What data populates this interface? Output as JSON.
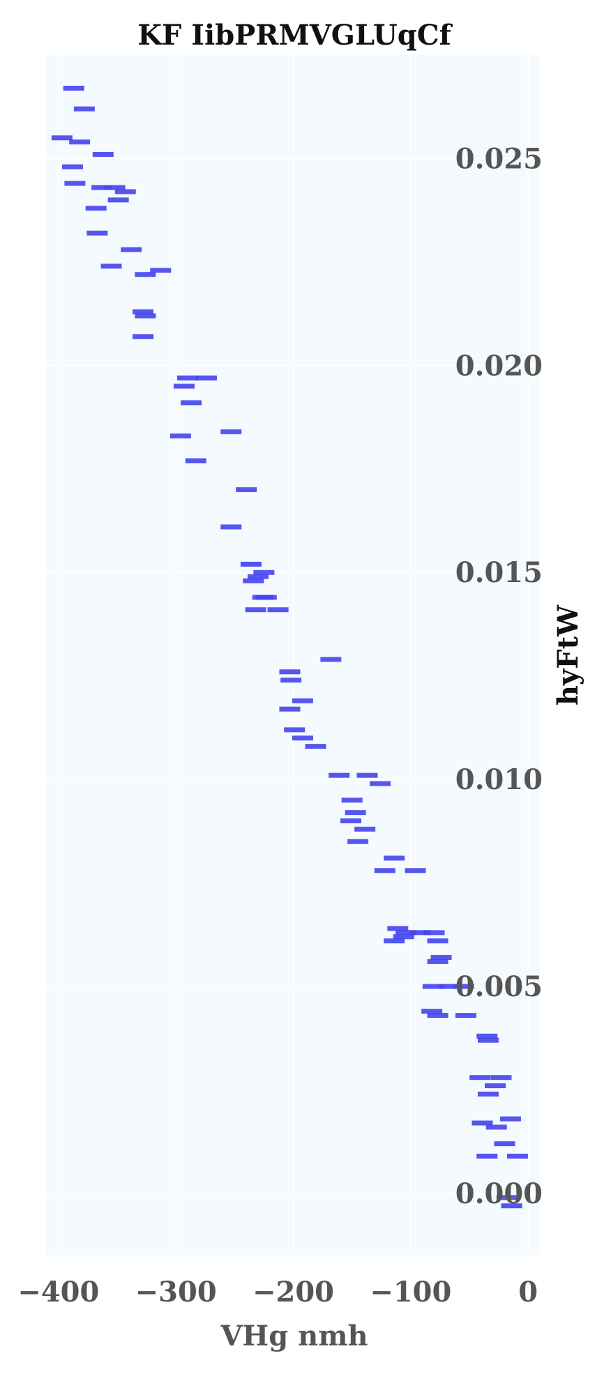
{
  "chart_data": {
    "type": "scatter",
    "title": "KF IibPRMVGLUqCf",
    "xlabel": "VHg nmh",
    "ylabel": "hyFtW",
    "xlim": [
      -410,
      10
    ],
    "ylim": [
      -0.0015,
      0.0275
    ],
    "x_ticks": [
      -400,
      -300,
      -200,
      -100,
      0
    ],
    "x_tick_labels": [
      "−400",
      "−300",
      "−200",
      "−100",
      "0"
    ],
    "y_ticks": [
      0.0,
      0.005,
      0.01,
      0.015,
      0.02,
      0.025
    ],
    "y_tick_labels": [
      "0.000",
      "0.005",
      "0.010",
      "0.015",
      "0.020",
      "0.025"
    ],
    "grid": true,
    "legend": false,
    "marker": "horizontal-dash",
    "colors": {
      "marker": "#4444ee",
      "plot_background": "#f4fafd",
      "grid": "#ffffff",
      "title": "#111111",
      "tick_label": "#555555",
      "xlabel": "#555555",
      "ylabel": "#111111"
    },
    "points": [
      [
        -387,
        0.0267
      ],
      [
        -378,
        0.0262
      ],
      [
        -397,
        0.0255
      ],
      [
        -382,
        0.0254
      ],
      [
        -362,
        0.0251
      ],
      [
        -388,
        0.0248
      ],
      [
        -386,
        0.0244
      ],
      [
        -363,
        0.0243
      ],
      [
        -352,
        0.0243
      ],
      [
        -343,
        0.0242
      ],
      [
        -349,
        0.024
      ],
      [
        -368,
        0.0238
      ],
      [
        -367,
        0.0232
      ],
      [
        -338,
        0.0228
      ],
      [
        -355,
        0.0224
      ],
      [
        -326,
        0.0222
      ],
      [
        -313,
        0.0223
      ],
      [
        -328,
        0.0213
      ],
      [
        -326,
        0.0212
      ],
      [
        -328,
        0.0207
      ],
      [
        -290,
        0.0197
      ],
      [
        -274,
        0.0197
      ],
      [
        -293,
        0.0195
      ],
      [
        -287,
        0.0191
      ],
      [
        -296,
        0.0183
      ],
      [
        -253,
        0.0184
      ],
      [
        -283,
        0.0177
      ],
      [
        -240,
        0.017
      ],
      [
        -253,
        0.0161
      ],
      [
        -236,
        0.0152
      ],
      [
        -225,
        0.015
      ],
      [
        -230,
        0.0149
      ],
      [
        -234,
        0.0148
      ],
      [
        -226,
        0.0144
      ],
      [
        -223,
        0.0144
      ],
      [
        -232,
        0.0141
      ],
      [
        -213,
        0.0141
      ],
      [
        -168,
        0.0129
      ],
      [
        -203,
        0.0126
      ],
      [
        -202,
        0.0124
      ],
      [
        -192,
        0.0119
      ],
      [
        -203,
        0.0117
      ],
      [
        -199,
        0.0112
      ],
      [
        -192,
        0.011
      ],
      [
        -181,
        0.0108
      ],
      [
        -161,
        0.0101
      ],
      [
        -137,
        0.0101
      ],
      [
        -126,
        0.0099
      ],
      [
        -150,
        0.0095
      ],
      [
        -147,
        0.0092
      ],
      [
        -151,
        0.009
      ],
      [
        -139,
        0.0088
      ],
      [
        -145,
        0.0085
      ],
      [
        -114,
        0.0081
      ],
      [
        -122,
        0.0078
      ],
      [
        -96,
        0.0078
      ],
      [
        -111,
        0.0064
      ],
      [
        -104,
        0.0063
      ],
      [
        -92,
        0.0063
      ],
      [
        -114,
        0.0061
      ],
      [
        -106,
        0.0062
      ],
      [
        -80,
        0.0063
      ],
      [
        -74,
        0.0057
      ],
      [
        -77,
        0.0056
      ],
      [
        -77,
        0.0061
      ],
      [
        -81,
        0.005
      ],
      [
        -67,
        0.005
      ],
      [
        -55,
        0.005
      ],
      [
        -82,
        0.0044
      ],
      [
        -77,
        0.0043
      ],
      [
        -53,
        0.0043
      ],
      [
        -35,
        0.0038
      ],
      [
        -34,
        0.0037
      ],
      [
        -41,
        0.0028
      ],
      [
        -23,
        0.0028
      ],
      [
        -28,
        0.0026
      ],
      [
        -34,
        0.0024
      ],
      [
        -39,
        0.0017
      ],
      [
        -15,
        0.0018
      ],
      [
        -27,
        0.0016
      ],
      [
        -20,
        0.0012
      ],
      [
        -35,
        0.0009
      ],
      [
        -9,
        0.0009
      ],
      [
        -18,
        -0.0001
      ],
      [
        -14,
        -0.0003
      ]
    ]
  }
}
